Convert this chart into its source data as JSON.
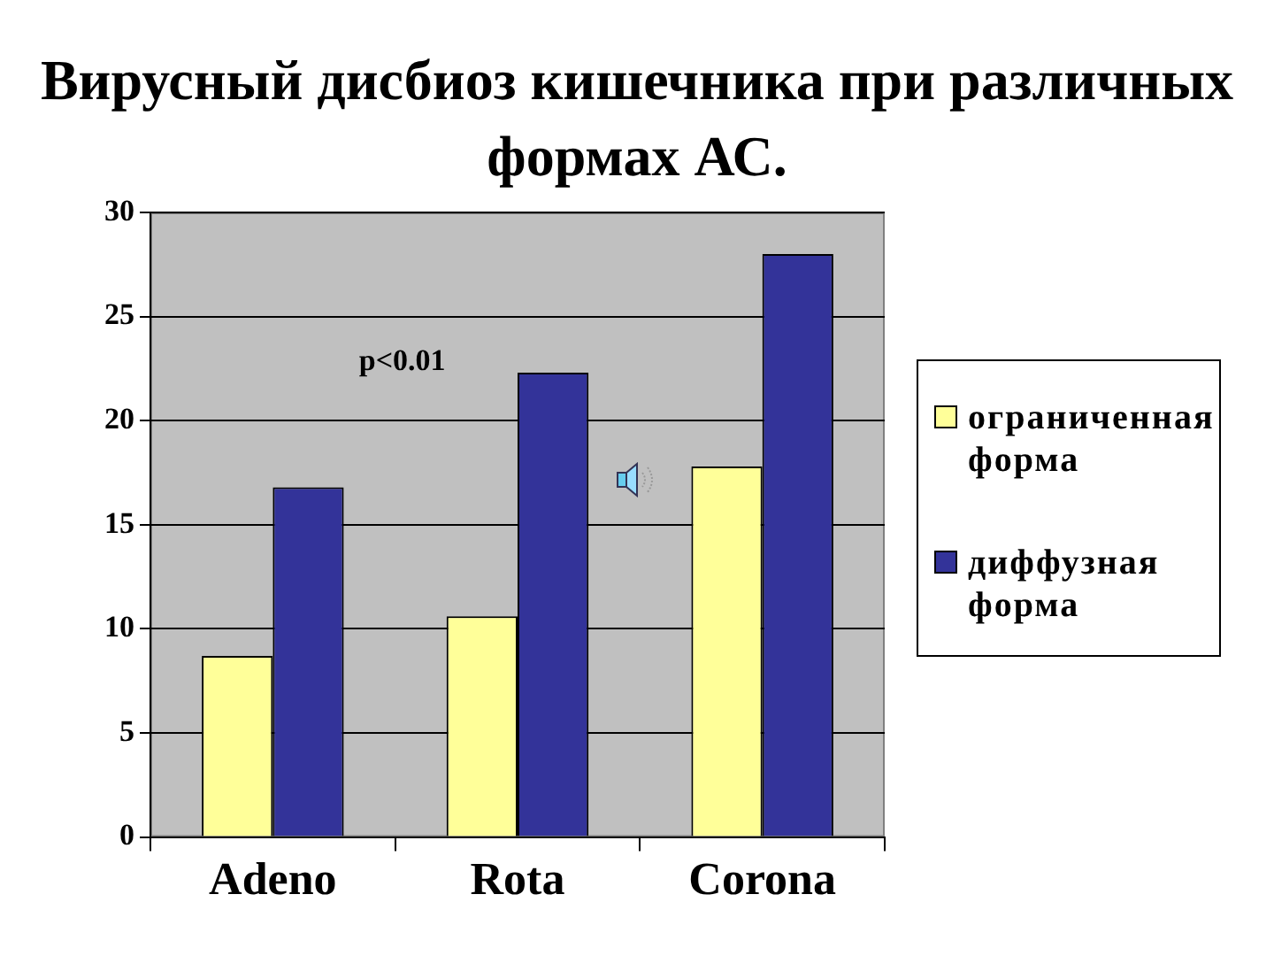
{
  "chart_data": {
    "type": "bar",
    "title": "Вирусный дисбиоз кишечника при различных формах АС.",
    "categories": [
      "Adeno",
      "Rota",
      "Corona"
    ],
    "series": [
      {
        "name": "ограниченная форма",
        "color": "#ffff99",
        "values": [
          8.7,
          10.6,
          17.8
        ]
      },
      {
        "name": "диффузная форма",
        "color": "#333399",
        "values": [
          16.8,
          22.3,
          28.0
        ]
      }
    ],
    "ylim": [
      0,
      30
    ],
    "yticks": [
      0,
      5,
      10,
      15,
      20,
      25,
      30
    ],
    "grid": "y",
    "legend": "right",
    "annotations": [
      "p<0.01"
    ]
  }
}
